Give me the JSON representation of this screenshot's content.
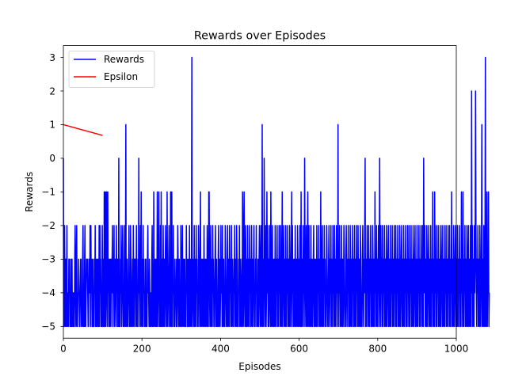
{
  "chart_data": {
    "type": "line",
    "title": "Rewards over Episodes",
    "xlabel": "Episodes",
    "ylabel": "Rewards",
    "xlim": [
      0,
      1000
    ],
    "ylim": [
      -5.35,
      3.35
    ],
    "xticks": [
      0,
      200,
      400,
      600,
      800,
      1000
    ],
    "yticks": [
      -5,
      -4,
      -3,
      -2,
      -1,
      0,
      1,
      2,
      3
    ],
    "grid": false,
    "legend_position": "upper-left",
    "series": [
      {
        "name": "Rewards",
        "color": "#0000ff",
        "x_start": 0,
        "x_step": 1,
        "values": [
          0,
          -5,
          -5,
          -2,
          -4,
          -5,
          -3,
          -3,
          -5,
          -2,
          -5,
          -4,
          -4,
          -5,
          -3,
          -3,
          -3,
          -5,
          -4,
          -5,
          -3,
          -5,
          -3,
          -5,
          -4,
          -5,
          -4,
          -5,
          -5,
          -3,
          -2,
          -4,
          -5,
          -3,
          -2,
          -5,
          -5,
          -4,
          -4,
          -3,
          -4,
          -5,
          -5,
          -4,
          -3,
          -3,
          -5,
          -4,
          -5,
          -3,
          -2,
          -5,
          -4,
          -5,
          -3,
          -2,
          -5,
          -5,
          -4,
          -3,
          -3,
          -3,
          -4,
          -5,
          -5,
          -3,
          -3,
          -4,
          -2,
          -5,
          -2,
          -4,
          -3,
          -5,
          -5,
          -3,
          -5,
          -4,
          -5,
          -3,
          -4,
          -2,
          -5,
          -3,
          -5,
          -3,
          -5,
          -4,
          -3,
          -5,
          -5,
          -2,
          -5,
          -2,
          -4,
          -3,
          -5,
          -5,
          -5,
          -2,
          -4,
          -5,
          -3,
          -5,
          -1,
          -5,
          -3,
          -1,
          -5,
          -4,
          -1,
          -3,
          -5,
          -1,
          -4,
          -3,
          -5,
          -3,
          -5,
          -4,
          -3,
          -5,
          -3,
          -4,
          -3,
          -2,
          -5,
          -3,
          -4,
          -2,
          -5,
          -4,
          -3,
          -3,
          -5,
          -2,
          -4,
          -3,
          -5,
          -3,
          -5,
          0,
          -5,
          -4,
          -5,
          -3,
          -4,
          -2,
          -5,
          -4,
          -3,
          -2,
          -5,
          -4,
          -5,
          -3,
          -2,
          -5,
          -3,
          1,
          -5,
          -4,
          -3,
          -5,
          -5,
          -4,
          -3,
          -2,
          -5,
          -4,
          -5,
          -2,
          -3,
          -5,
          -5,
          -4,
          -3,
          -5,
          -2,
          -4,
          -5,
          -3,
          -3,
          -3,
          -5,
          -4,
          -2,
          -5,
          -4,
          -5,
          -3,
          -4,
          0,
          -5,
          -3,
          -4,
          -2,
          -5,
          -1,
          -4,
          -5,
          -3,
          -5,
          -2,
          -4,
          -3,
          -5,
          -4,
          -5,
          -3,
          -3,
          -5,
          -4,
          -5,
          -3,
          -2,
          -4,
          -4,
          -5,
          -3,
          -4,
          -5,
          -4,
          -5,
          -5,
          -3,
          -2,
          -5,
          -4,
          -5,
          -1,
          -4,
          -5,
          -3,
          -4,
          -5,
          -3,
          -5,
          -4,
          -1,
          -5,
          -4,
          -3,
          -1,
          -5,
          -4,
          -5,
          -2,
          -5,
          -1,
          -5,
          -4,
          -3,
          -5,
          -2,
          -4,
          -5,
          -3,
          -5,
          -4,
          -2,
          -3,
          -5,
          -5,
          -1,
          -4,
          -5,
          -4,
          -3,
          -2,
          -5,
          -4,
          -5,
          -1,
          -4,
          -5,
          -1,
          -5,
          -3,
          -4,
          -2,
          -5,
          -4,
          -5,
          -3,
          -4,
          -4,
          -5,
          -3,
          -5,
          -4,
          -2,
          -3,
          -5,
          -4,
          -3,
          -5,
          -4,
          -5,
          -2,
          -4,
          -5,
          -3,
          -2,
          -5,
          -4,
          -3,
          -5,
          -4,
          -3,
          -5,
          -4,
          -5,
          -2,
          -4,
          -3,
          -5,
          -5,
          -3,
          -5,
          -4,
          -2,
          -5,
          -3,
          -4,
          -5,
          -3,
          3,
          -5,
          -4,
          -3,
          -4,
          -5,
          -2,
          -5,
          -4,
          -3,
          -5,
          -2,
          -4,
          -3,
          -5,
          -4,
          -5,
          -2,
          -3,
          -4,
          -5,
          -3,
          -1,
          -5,
          -4,
          -3,
          -5,
          -4,
          -3,
          -5,
          -4,
          -2,
          -5,
          -3,
          -4,
          -5,
          -3,
          -4,
          -5,
          -2,
          -3,
          -5,
          -5,
          -1,
          -1,
          -4,
          -5,
          -3,
          -2,
          -5,
          -3,
          -4,
          -5,
          -2,
          -4,
          -3,
          -5,
          -5,
          -4,
          -3,
          -2,
          -5,
          -4,
          -3,
          -5,
          -4,
          -5,
          -3,
          -2,
          -5,
          -4,
          -3,
          -5,
          -4,
          -2,
          -4,
          -3,
          -5,
          -2,
          -5,
          -4,
          -3,
          -5,
          -4,
          -5,
          -2,
          -3,
          -4,
          -5,
          -5,
          -3,
          -2,
          -5,
          -4,
          -3,
          -5,
          -2,
          -4,
          -3,
          -5,
          -4,
          -2,
          -5,
          -3,
          -4,
          -5,
          -5,
          -3,
          -4,
          -2,
          -5,
          -4,
          -3,
          -5,
          -2,
          -3,
          -5,
          -4,
          -5,
          -3,
          -4,
          -2,
          -5,
          -3,
          -4,
          -5,
          -4,
          -3,
          -5,
          -1,
          -2,
          -5,
          -4,
          -1,
          -3,
          -5,
          -4,
          -2,
          -5,
          -3,
          -5,
          -4,
          -2,
          -5,
          -3,
          -4,
          -5,
          -2,
          -4,
          -3,
          -5,
          -4,
          -2,
          -5,
          -3,
          -5,
          -4,
          -3,
          -2,
          -5,
          -4,
          -5,
          -3,
          -4,
          -2,
          -5,
          -4,
          -5,
          -3,
          -4,
          -5,
          -3,
          -2,
          -4,
          -5,
          -3,
          -2,
          -5,
          -4,
          1,
          -5,
          -3,
          -4,
          -5,
          0,
          -3,
          -4,
          -5,
          -2,
          -5,
          -4,
          -1,
          -4,
          -2,
          -5,
          -3,
          -5,
          -4,
          -2,
          -4,
          -5,
          -1,
          -3,
          -5,
          -4,
          -2,
          -5,
          -3,
          -5,
          -4,
          -3,
          -5,
          -2,
          -4,
          -5,
          -3,
          -4,
          -2,
          -5,
          -3,
          -4,
          -5,
          -2,
          -4,
          -3,
          -5,
          -2,
          -4,
          -5,
          -3,
          -1,
          -5,
          -4,
          -3,
          -2,
          -5,
          -4,
          -3,
          -5,
          -2,
          -4,
          -5,
          -3,
          -4,
          -2,
          -5,
          -3,
          -4,
          -5,
          -2,
          -3,
          -5,
          -4,
          -3,
          -1,
          -5,
          -2,
          -4,
          -3,
          -5,
          -4,
          -3,
          -5,
          -2,
          -4,
          -5,
          -3,
          -4,
          -5,
          -2,
          -3,
          -5,
          -4,
          -3,
          -5,
          -2,
          -4,
          -5,
          -1,
          -5,
          -4,
          -3,
          -5,
          -2,
          -4,
          -3,
          -5,
          0,
          -3,
          -4,
          -5,
          -2,
          -4,
          -5,
          -3,
          -1,
          -5,
          -4,
          -2,
          -5,
          -3,
          -4,
          -5,
          -2,
          -5,
          -4,
          -3,
          -5,
          -4,
          -3,
          -2,
          -5,
          -4,
          -3,
          -5,
          -4,
          -3,
          -5,
          -2,
          -4,
          -5,
          -3,
          -4,
          -2,
          -5,
          -3,
          -4,
          -5,
          -1,
          -4,
          -5,
          -3,
          -2,
          -5,
          -4,
          -3,
          -5,
          -2,
          -4,
          -3,
          -5,
          -4,
          -5,
          -2,
          -3,
          -4,
          -5,
          -5,
          -3,
          -2,
          -4,
          -5,
          -3,
          -4,
          -2,
          -5,
          -3,
          -4,
          -5,
          -2,
          -4,
          -3,
          -5,
          -2,
          -4,
          -5,
          -3,
          -4,
          -2,
          -5,
          -3,
          -4,
          1,
          -5,
          -3,
          -4,
          -2,
          -5,
          -4,
          -3,
          -5,
          -2,
          -4,
          -5,
          -3,
          -5,
          -4,
          -2,
          -3,
          -5,
          -4,
          -5,
          -3,
          -2,
          -4,
          -5,
          -3,
          -4,
          -2,
          -5,
          -3,
          -4,
          -5,
          -2,
          -3,
          -5,
          -4,
          -3,
          -5,
          -2,
          -4,
          -3,
          -5,
          -4,
          -2,
          -5,
          -3,
          -4,
          -5,
          -2,
          -4,
          -3,
          -5,
          -2,
          -4,
          -5,
          -3,
          -4,
          -5,
          -2,
          -3,
          -5,
          -4,
          -5,
          -3,
          -2,
          -4,
          -5,
          -3,
          -4,
          -2,
          0,
          -5,
          -3,
          -4,
          -5,
          -2,
          -4,
          -3,
          -5,
          -2,
          -4,
          -5,
          -3,
          -4,
          -2,
          -5,
          -3,
          -4,
          -5,
          -2,
          -3,
          -5,
          -4,
          -3,
          -5,
          -1,
          -4,
          -3,
          -5,
          -2,
          -4,
          -5,
          -3,
          -4,
          -2,
          -5,
          -3,
          0,
          -4,
          -5,
          -2,
          -4,
          -3,
          -5,
          -2,
          -4,
          -5,
          -3,
          -4,
          -2,
          -5,
          -3,
          -4,
          -5,
          -2,
          -3,
          -5,
          -4,
          -3,
          -2,
          -5,
          -4,
          -3,
          -5,
          -2,
          -4,
          -5,
          -3,
          -4,
          -2,
          -5,
          -3,
          -4,
          -5,
          -2,
          -4,
          -3,
          -5,
          -2,
          -4,
          -5,
          -3,
          -4,
          -2,
          -5,
          -3,
          -4,
          -5,
          -2,
          -3,
          -5,
          -4,
          -3,
          -2,
          -5,
          -4,
          -3,
          -5,
          -2,
          -4,
          -5,
          -3,
          -4,
          -2,
          -5,
          -3,
          -4,
          -5,
          -2,
          -4,
          -3,
          -5,
          -2,
          -4,
          -5,
          -3,
          -4,
          -2,
          -5,
          -3,
          -4,
          -5,
          -2,
          -3,
          -5,
          -4,
          -3,
          -2,
          -5,
          -4,
          -3,
          -5,
          -2,
          -4,
          -5,
          -3,
          -4,
          -2,
          -5,
          -3,
          -4,
          -5,
          -2,
          -4,
          -3,
          -5,
          -2,
          -4,
          -5,
          0,
          -3,
          -4,
          -2,
          -5,
          -3,
          -4,
          -5,
          -2,
          -3,
          -5,
          -4,
          -3,
          -2,
          -5,
          -4,
          -3,
          -5,
          -2,
          -4,
          -5,
          -3,
          -4,
          -1,
          -5,
          -3,
          -4,
          -5,
          -1,
          -4,
          -3,
          -5,
          -2,
          -4,
          -5,
          -3,
          -4,
          -2,
          -5,
          -3,
          -4,
          -5,
          -2,
          -3,
          -5,
          -4,
          -3,
          -2,
          -5,
          -4,
          -3,
          -5,
          -2,
          -4,
          -5,
          -3,
          -4,
          -2,
          -5,
          -3,
          -4,
          -5,
          -2,
          -4,
          -3,
          -5,
          -2,
          -4,
          -5,
          -3,
          -4,
          -1,
          -5,
          -3,
          -4,
          -5,
          -2,
          -3,
          -5,
          -4,
          -3,
          -2,
          -5,
          -4,
          -3,
          -5,
          -2,
          -4,
          -5,
          -3,
          -4,
          -2,
          -5,
          -3,
          -4,
          -5,
          -1,
          -4,
          -3,
          -5,
          -1,
          -4,
          -5,
          -3,
          -4,
          -2,
          -5,
          -3,
          -4,
          -5,
          -2,
          -3,
          -5,
          -4,
          -2,
          -5,
          -4,
          -3,
          -5,
          -2,
          -4,
          -5,
          2,
          -4,
          -2,
          -5,
          -3,
          -4,
          -5,
          -2,
          -4,
          -3,
          2,
          -2,
          -4,
          -5,
          -3,
          -4,
          -2,
          -5,
          -3,
          -4,
          -5,
          -2,
          -3,
          -5,
          -4,
          -3,
          1,
          -5,
          -4,
          -3,
          -5,
          -2,
          -4,
          -5,
          -3,
          3,
          -5,
          -5,
          -4,
          -1,
          -5,
          -3,
          -4,
          -1,
          -5,
          -4
        ]
      },
      {
        "name": "Epsilon",
        "color": "#ff0000",
        "x": [
          0,
          100
        ],
        "values": [
          1.0,
          0.6787
        ]
      }
    ]
  }
}
